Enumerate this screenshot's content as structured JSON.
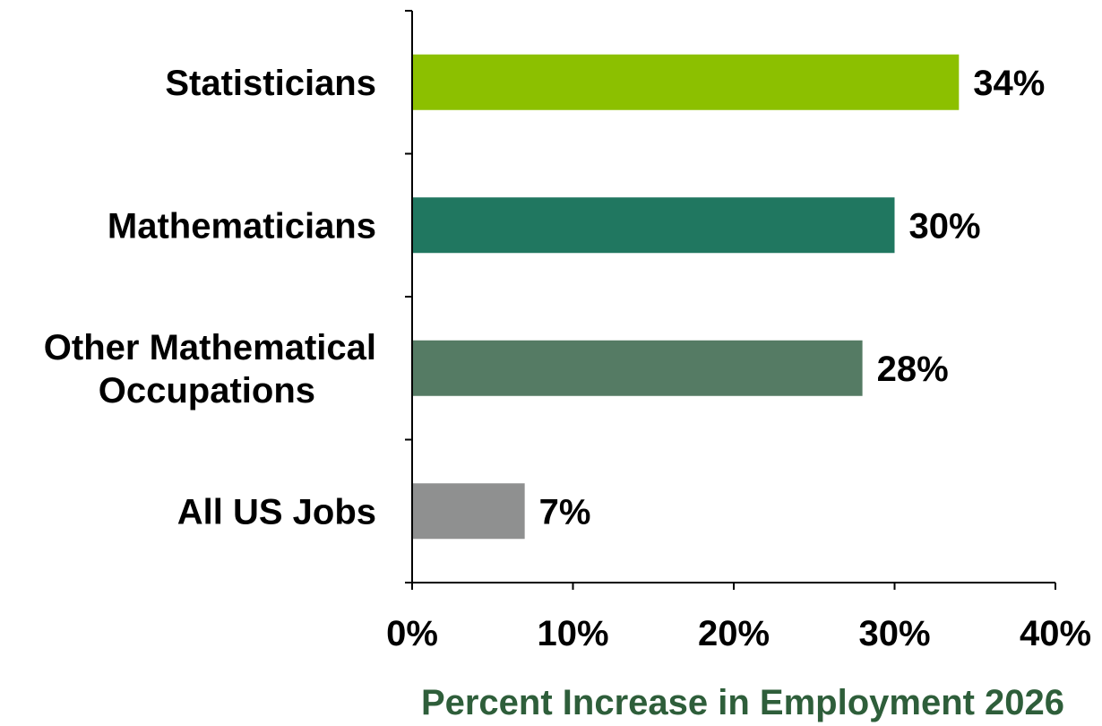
{
  "chart_data": {
    "type": "bar",
    "orientation": "horizontal",
    "categories": [
      [
        "Statisticians"
      ],
      [
        "Mathematicians"
      ],
      [
        "Other Mathematical",
        "Occupations"
      ],
      [
        "All US Jobs"
      ]
    ],
    "values": [
      34,
      30,
      28,
      7
    ],
    "data_labels": [
      "34%",
      "30%",
      "28%",
      "7%"
    ],
    "bar_colors": [
      "#8cc000",
      "#207760",
      "#557b64",
      "#8f9090"
    ],
    "xlabel": "Percent Increase in Employment 2026",
    "xlabel_color": "#2e5e3a",
    "xlim": [
      0,
      40
    ],
    "x_ticks": [
      0,
      10,
      20,
      30,
      40
    ],
    "x_tick_labels": [
      "0%",
      "10%",
      "20%",
      "30%",
      "40%"
    ],
    "grid": false,
    "legend": "none"
  }
}
